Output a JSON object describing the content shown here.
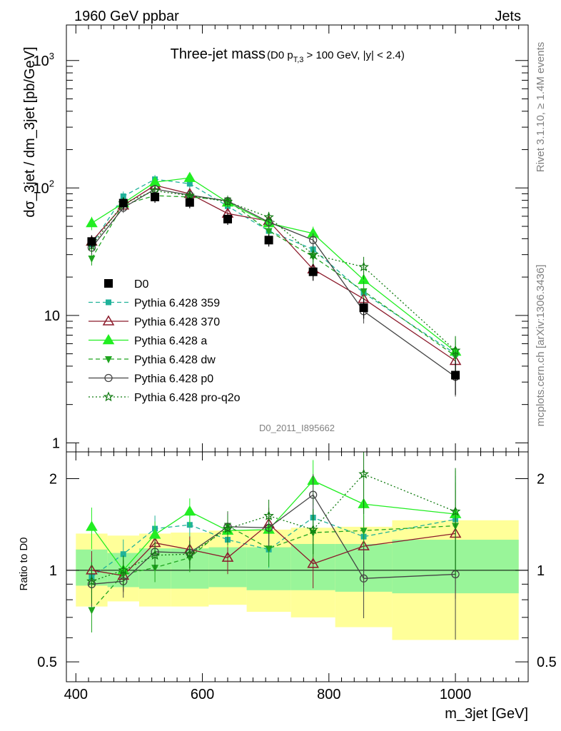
{
  "header": {
    "left": "1960 GeV ppbar",
    "right": "Jets",
    "side_top": "Rivet 3.1.10, ≥ 1.4M events",
    "side_bottom": "mcplots.cern.ch [arXiv:1306.3436]"
  },
  "chart_data": {
    "type": "line",
    "title": "Three-jet mass",
    "subtitle": "(D0 p_{T,3} > 100 GeV, |y| < 2.4)",
    "watermark": "D0_2011_I895662",
    "x_label": "m_3jet [GeV]",
    "y_label": "dσ_3jet / dm_3jet [pb/GeV]",
    "ratio_label": "Ratio to D0",
    "xlim": [
      385,
      1115
    ],
    "ylim": [
      0.85,
      1900
    ],
    "yscale": "log",
    "ratio_ylim": [
      0.43,
      2.45
    ],
    "ratio_yscale": "log",
    "x_ticks": [
      "400",
      "600",
      "800",
      "1000"
    ],
    "y_ticks": [
      "1",
      "10",
      "10^2",
      "10^3"
    ],
    "ratio_ticks": [
      "0.5",
      "1",
      "2"
    ],
    "x": [
      425,
      475,
      525,
      580,
      640,
      705,
      775,
      855,
      1000
    ],
    "x_edges": [
      400,
      450,
      500,
      550,
      610,
      670,
      740,
      810,
      900,
      1100
    ],
    "band_inner": [
      [
        0.89,
        1.17
      ],
      [
        0.88,
        1.14
      ],
      [
        0.87,
        1.18
      ],
      [
        0.87,
        1.18
      ],
      [
        0.88,
        1.19
      ],
      [
        0.86,
        1.19
      ],
      [
        0.86,
        1.22
      ],
      [
        0.85,
        1.22
      ],
      [
        0.84,
        1.26
      ]
    ],
    "band_outer": [
      [
        0.76,
        1.32
      ],
      [
        0.79,
        1.3
      ],
      [
        0.76,
        1.32
      ],
      [
        0.76,
        1.33
      ],
      [
        0.77,
        1.35
      ],
      [
        0.73,
        1.36
      ],
      [
        0.7,
        1.38
      ],
      [
        0.65,
        1.39
      ],
      [
        0.59,
        1.46
      ]
    ],
    "data_series": {
      "name": "D0",
      "values": [
        38,
        76,
        85,
        77,
        57,
        39,
        22,
        11.5,
        3.4
      ],
      "errors": [
        0.12,
        0.11,
        0.1,
        0.1,
        0.1,
        0.11,
        0.15,
        0.18,
        0.3
      ]
    },
    "series": [
      {
        "name": "Pythia 6.428 359",
        "color": "#20b29a",
        "dash": "6,4",
        "marker": "square",
        "values": [
          36,
          86,
          117,
          108,
          72,
          46,
          33,
          15,
          5
        ],
        "errors": [
          0.12,
          0.09,
          0.08,
          0.08,
          0.09,
          0.1,
          0.13,
          0.2,
          0.3
        ]
      },
      {
        "name": "Pythia 6.428 370",
        "color": "#8b1a2b",
        "dash": "",
        "marker": "triangle-open",
        "values": [
          38,
          73,
          105,
          90,
          63,
          55,
          23,
          13.5,
          4.4
        ],
        "errors": [
          0.12,
          0.09,
          0.08,
          0.08,
          0.09,
          0.1,
          0.13,
          0.2,
          0.3
        ]
      },
      {
        "name": "Pythia 6.428 a",
        "color": "#22ee22",
        "dash": "",
        "marker": "triangle",
        "values": [
          53,
          76,
          111,
          120,
          77,
          53,
          44,
          19,
          5.2
        ],
        "errors": [
          0.12,
          0.09,
          0.08,
          0.08,
          0.09,
          0.1,
          0.13,
          0.2,
          0.3
        ]
      },
      {
        "name": "Pythia 6.428 dw",
        "color": "#1fa51f",
        "dash": "6,4",
        "marker": "triangle-down",
        "values": [
          28,
          74,
          87,
          85,
          80,
          46,
          29,
          15.5,
          4.8
        ],
        "errors": [
          0.12,
          0.09,
          0.08,
          0.08,
          0.09,
          0.1,
          0.13,
          0.2,
          0.3
        ]
      },
      {
        "name": "Pythia 6.428 p0",
        "color": "#444444",
        "dash": "",
        "marker": "circle-open",
        "values": [
          34,
          70,
          98,
          88,
          79,
          54,
          39,
          10.8,
          3.3
        ],
        "errors": [
          0.12,
          0.09,
          0.08,
          0.08,
          0.09,
          0.1,
          0.13,
          0.2,
          0.3
        ]
      },
      {
        "name": "Pythia 6.428 pro-q2o",
        "color": "#0f7a0f",
        "dash": "2,3",
        "marker": "star-open",
        "values": [
          35,
          76,
          95,
          87,
          78,
          59,
          30,
          24,
          5.3
        ],
        "errors": [
          0.12,
          0.09,
          0.08,
          0.08,
          0.09,
          0.1,
          0.13,
          0.2,
          0.3
        ]
      }
    ],
    "ratios": [
      [
        0.95,
        1.13,
        1.37,
        1.41,
        1.26,
        1.17,
        1.49,
        1.29,
        1.47
      ],
      [
        1.0,
        0.96,
        1.23,
        1.17,
        1.1,
        1.42,
        1.05,
        1.2,
        1.32
      ],
      [
        1.39,
        1.0,
        1.31,
        1.56,
        1.35,
        1.36,
        1.97,
        1.65,
        1.53
      ],
      [
        0.74,
        0.97,
        1.02,
        1.1,
        1.4,
        1.18,
        1.33,
        1.35,
        1.4
      ],
      [
        0.9,
        0.92,
        1.15,
        1.14,
        1.39,
        1.38,
        1.77,
        0.94,
        0.97
      ],
      [
        0.92,
        1.0,
        1.12,
        1.13,
        1.37,
        1.51,
        1.36,
        2.07,
        1.56
      ]
    ]
  }
}
